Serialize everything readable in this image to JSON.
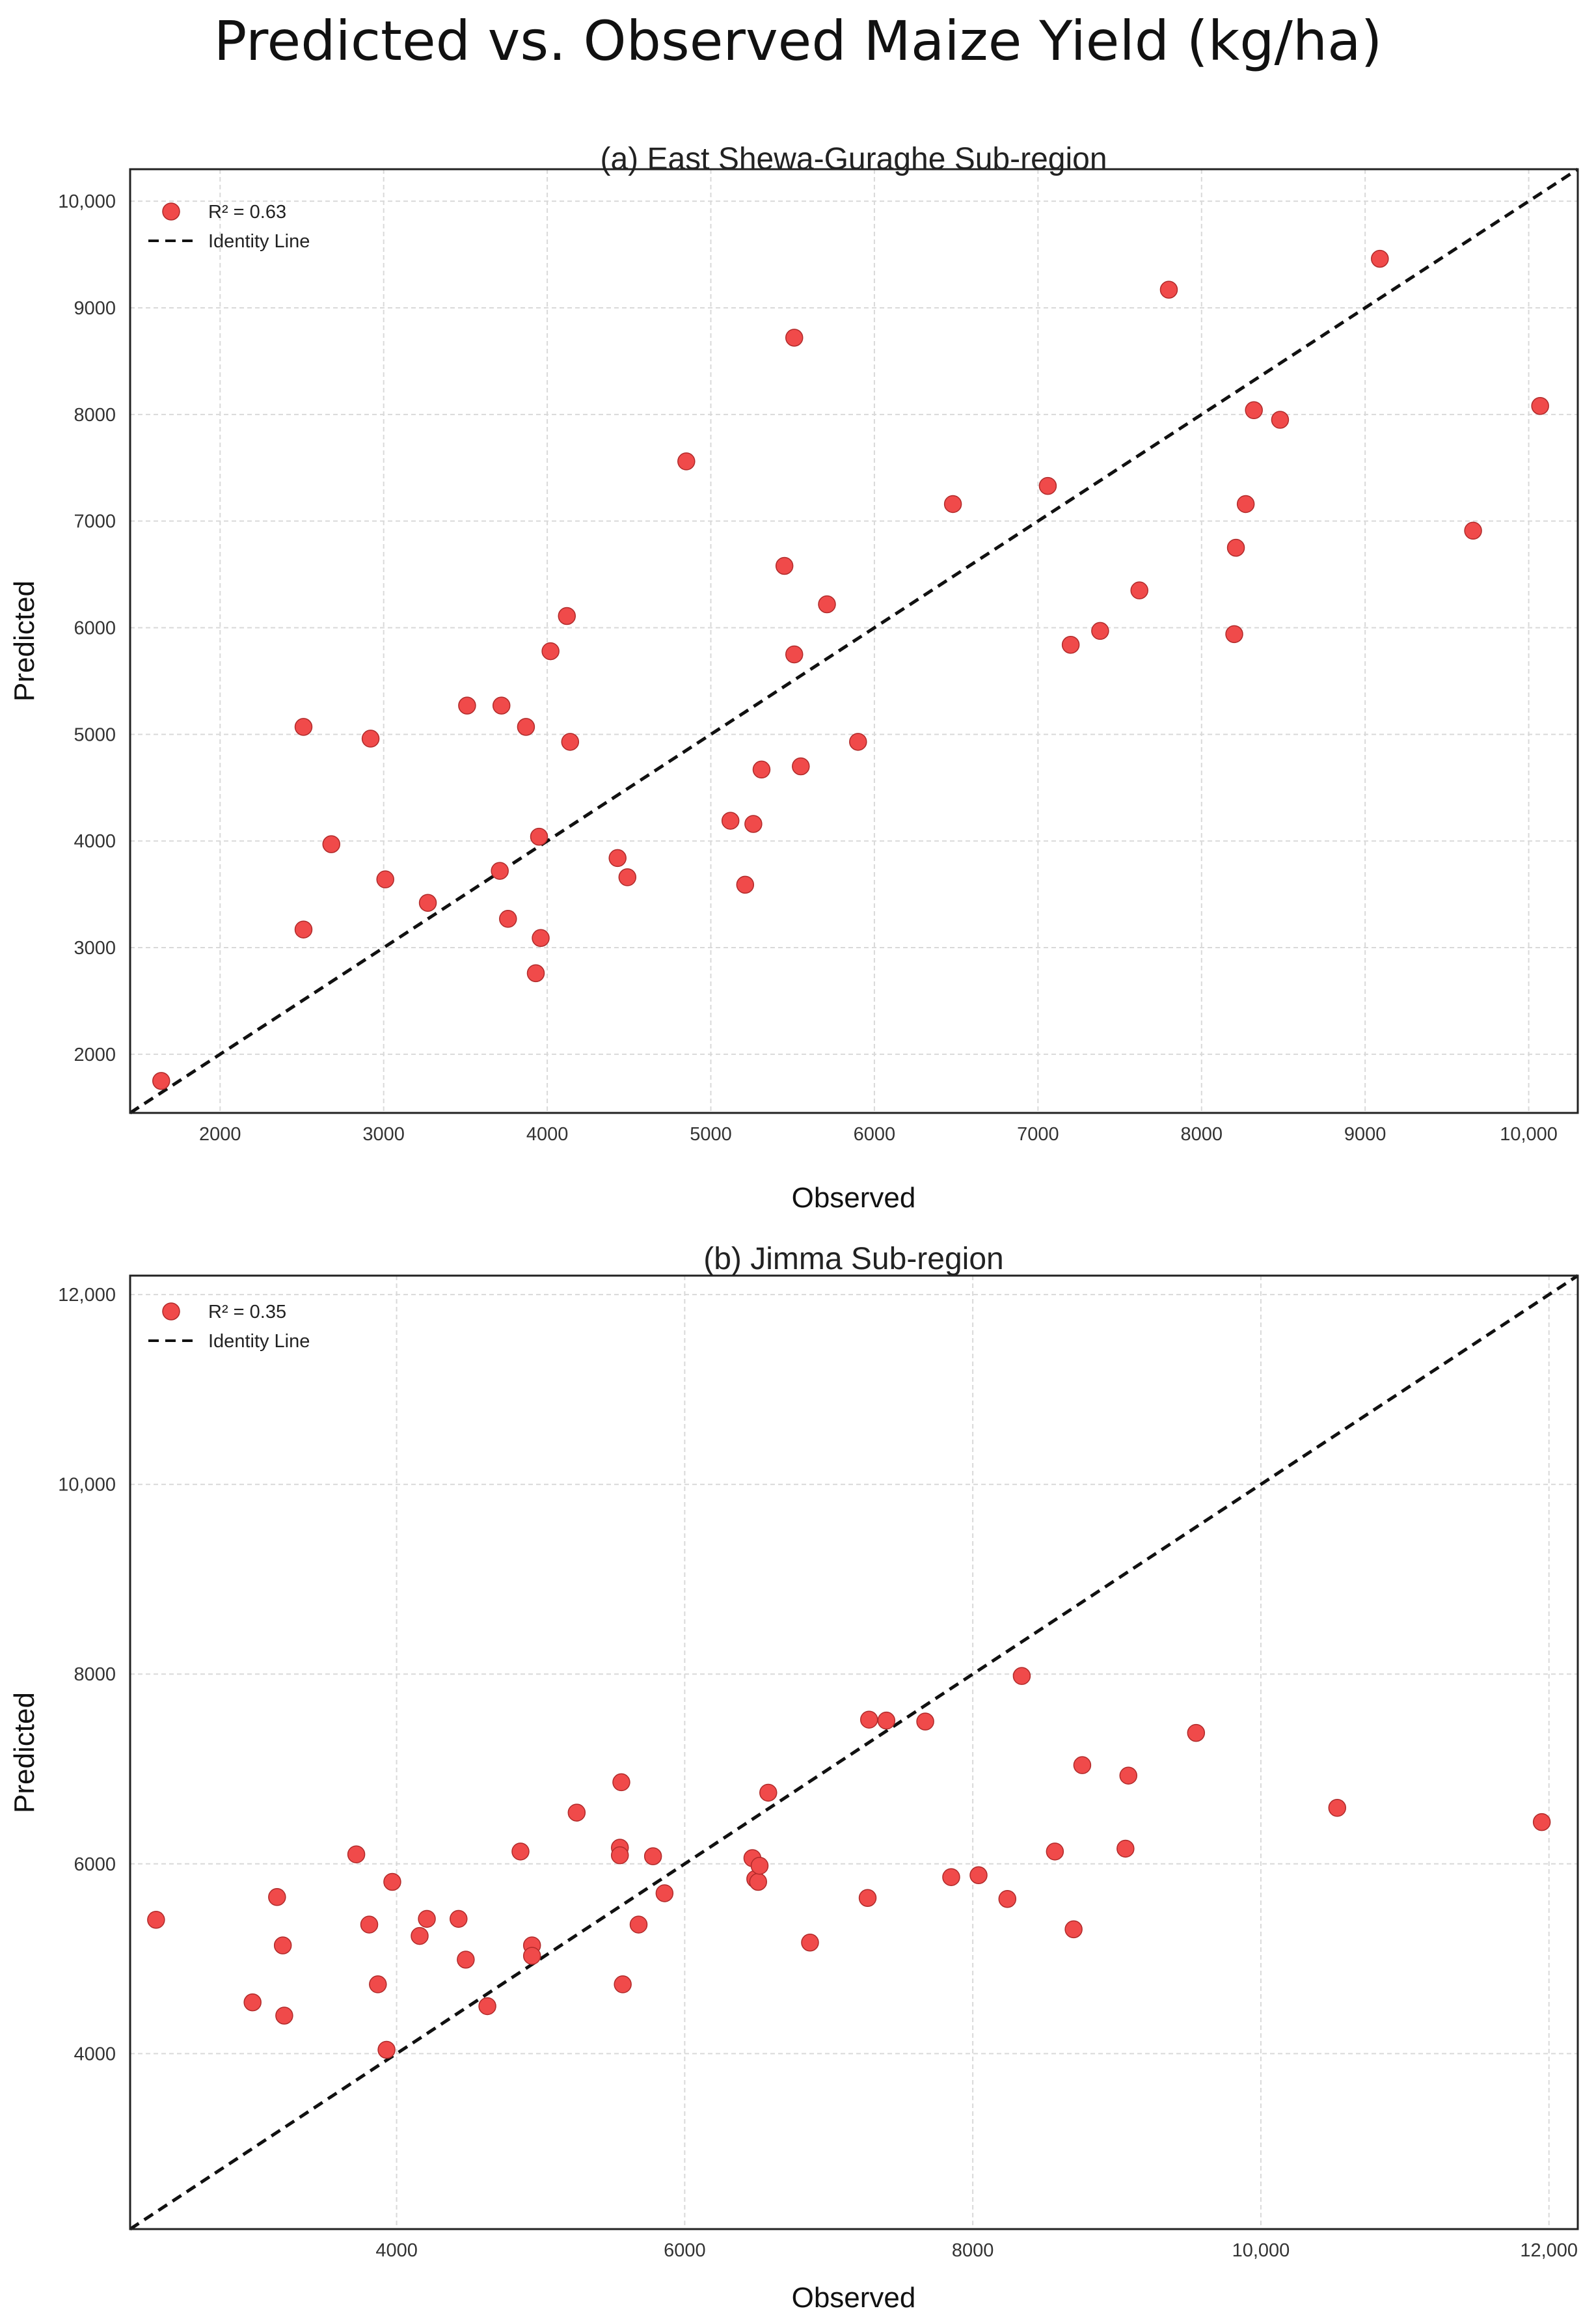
{
  "figure_title": "Predicted vs. Observed Maize Yield (kg/ha)",
  "chart_data": [
    {
      "type": "scatter",
      "title": "(a) East Shewa-Guraghe Sub-region",
      "xlabel": "Observed",
      "ylabel": "Predicted",
      "xlim": [
        1450,
        10300
      ],
      "ylim": [
        1450,
        10300
      ],
      "xticks": [
        2000,
        3000,
        4000,
        5000,
        6000,
        7000,
        8000,
        9000,
        10000
      ],
      "xtick_labels": [
        "2000",
        "3000",
        "4000",
        "5000",
        "6000",
        "7000",
        "8000",
        "9000",
        "10,000"
      ],
      "yticks": [
        2000,
        3000,
        4000,
        5000,
        6000,
        7000,
        8000,
        9000,
        10000
      ],
      "ytick_labels": [
        "2000",
        "3000",
        "4000",
        "5000",
        "6000",
        "7000",
        "8000",
        "9000",
        "10,000"
      ],
      "grid": true,
      "legend": {
        "location": "top-left",
        "entries": [
          "R² = 0.63",
          "Identity Line"
        ]
      },
      "colors": {
        "points": "#f04a4a",
        "identity": "#111111"
      },
      "series": [
        {
          "name": "R² = 0.63",
          "points": [
            [
              1640,
              1750
            ],
            [
              2510,
              5070
            ],
            [
              2510,
              3170
            ],
            [
              2680,
              3970
            ],
            [
              2920,
              4960
            ],
            [
              3010,
              3640
            ],
            [
              3270,
              3420
            ],
            [
              3510,
              5270
            ],
            [
              3720,
              5270
            ],
            [
              3710,
              3720
            ],
            [
              3760,
              3270
            ],
            [
              3870,
              5070
            ],
            [
              3950,
              4040
            ],
            [
              3960,
              3090
            ],
            [
              3930,
              2760
            ],
            [
              4020,
              5780
            ],
            [
              4120,
              6110
            ],
            [
              4140,
              4930
            ],
            [
              4430,
              3840
            ],
            [
              4490,
              3660
            ],
            [
              4850,
              7560
            ],
            [
              5120,
              4190
            ],
            [
              5210,
              3590
            ],
            [
              5260,
              4160
            ],
            [
              5310,
              4670
            ],
            [
              5450,
              6580
            ],
            [
              5510,
              8720
            ],
            [
              5510,
              5750
            ],
            [
              5550,
              4700
            ],
            [
              5710,
              6220
            ],
            [
              5900,
              4930
            ],
            [
              6480,
              7160
            ],
            [
              7060,
              7330
            ],
            [
              7200,
              5840
            ],
            [
              7380,
              5970
            ],
            [
              7620,
              6350
            ],
            [
              7800,
              9170
            ],
            [
              8200,
              5940
            ],
            [
              8210,
              6750
            ],
            [
              8270,
              7160
            ],
            [
              8320,
              8040
            ],
            [
              8480,
              7950
            ],
            [
              9090,
              9460
            ],
            [
              9660,
              6910
            ],
            [
              10070,
              8080
            ]
          ]
        }
      ]
    },
    {
      "type": "scatter",
      "title": "(b) Jimma Sub-region",
      "xlabel": "Observed",
      "ylabel": "Predicted",
      "xlim": [
        2150,
        12200
      ],
      "ylim": [
        2150,
        12200
      ],
      "xticks": [
        4000,
        6000,
        8000,
        10000,
        12000
      ],
      "xtick_labels": [
        "4000",
        "6000",
        "8000",
        "10,000",
        "12,000"
      ],
      "yticks": [
        4000,
        6000,
        8000,
        10000,
        12000
      ],
      "ytick_labels": [
        "4000",
        "6000",
        "8000",
        "10,000",
        "12,000"
      ],
      "grid": true,
      "legend": {
        "location": "top-left",
        "entries": [
          "R² = 0.35",
          "Identity Line"
        ]
      },
      "colors": {
        "points": "#f04a4a",
        "identity": "#111111"
      },
      "series": [
        {
          "name": "R² = 0.35",
          "points": [
            [
              2330,
              5410
            ],
            [
              3000,
              4540
            ],
            [
              3170,
              5650
            ],
            [
              3210,
              5140
            ],
            [
              3220,
              4400
            ],
            [
              3720,
              6100
            ],
            [
              3810,
              5360
            ],
            [
              3870,
              4730
            ],
            [
              3930,
              4040
            ],
            [
              3970,
              5810
            ],
            [
              4160,
              5240
            ],
            [
              4210,
              5420
            ],
            [
              4430,
              5420
            ],
            [
              4480,
              4990
            ],
            [
              4630,
              4500
            ],
            [
              4860,
              6130
            ],
            [
              4940,
              5140
            ],
            [
              4940,
              5030
            ],
            [
              5250,
              6540
            ],
            [
              5550,
              6170
            ],
            [
              5550,
              6090
            ],
            [
              5560,
              6860
            ],
            [
              5570,
              4730
            ],
            [
              5680,
              5360
            ],
            [
              5780,
              6080
            ],
            [
              5860,
              5690
            ],
            [
              6470,
              6060
            ],
            [
              6490,
              5840
            ],
            [
              6510,
              5810
            ],
            [
              6520,
              5980
            ],
            [
              6580,
              6750
            ],
            [
              6870,
              5170
            ],
            [
              7270,
              5640
            ],
            [
              7280,
              7520
            ],
            [
              7400,
              7510
            ],
            [
              7670,
              7500
            ],
            [
              7850,
              5860
            ],
            [
              8040,
              5880
            ],
            [
              8240,
              5630
            ],
            [
              8340,
              7980
            ],
            [
              8570,
              6130
            ],
            [
              8700,
              5310
            ],
            [
              8760,
              7040
            ],
            [
              9060,
              6160
            ],
            [
              9080,
              6930
            ],
            [
              9550,
              7380
            ],
            [
              10530,
              6590
            ],
            [
              11950,
              6440
            ]
          ]
        }
      ]
    }
  ]
}
